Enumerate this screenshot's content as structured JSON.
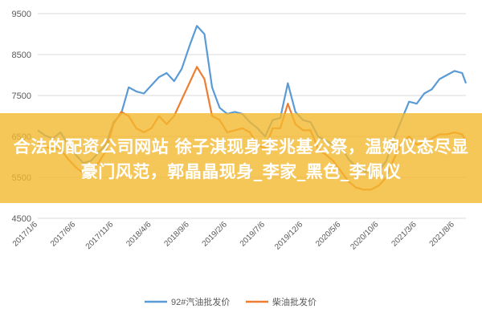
{
  "chart_data": {
    "type": "line",
    "ylim": [
      4500,
      9500
    ],
    "yticks": [
      4500,
      5500,
      6500,
      7500,
      8500,
      9500
    ],
    "x_tick_labels": [
      "2017/1/6",
      "2017/6/6",
      "2017/11/6",
      "2018/4/6",
      "2018/9/6",
      "2019/2/6",
      "2019/7/6",
      "2019/12/6",
      "2020/5/6",
      "2020/10/6",
      "2021/3/6",
      "2021/8/6"
    ],
    "x_tick_positions": [
      0,
      5,
      10,
      15,
      20,
      25,
      30,
      35,
      40,
      45,
      50,
      55
    ],
    "x_domain": [
      0,
      56.5
    ],
    "grid": true,
    "legend": "bottom",
    "series": [
      {
        "name": "92#汽油批发价",
        "color": "#5b9bd5",
        "points": [
          [
            0,
            6650
          ],
          [
            1,
            6520
          ],
          [
            2,
            6450
          ],
          [
            3,
            6600
          ],
          [
            4,
            6300
          ],
          [
            5,
            6050
          ],
          [
            6,
            5850
          ],
          [
            7,
            5900
          ],
          [
            8,
            6100
          ],
          [
            9,
            6300
          ],
          [
            10,
            6850
          ],
          [
            11,
            7050
          ],
          [
            12,
            7700
          ],
          [
            13,
            7600
          ],
          [
            14,
            7550
          ],
          [
            15,
            7750
          ],
          [
            16,
            7950
          ],
          [
            17,
            8050
          ],
          [
            18,
            7850
          ],
          [
            19,
            8150
          ],
          [
            20,
            8700
          ],
          [
            21,
            9200
          ],
          [
            22,
            9000
          ],
          [
            23,
            7700
          ],
          [
            24,
            7200
          ],
          [
            25,
            7050
          ],
          [
            26,
            7100
          ],
          [
            27,
            7050
          ],
          [
            28,
            6850
          ],
          [
            29,
            6700
          ],
          [
            30,
            6500
          ],
          [
            31,
            6900
          ],
          [
            32,
            6950
          ],
          [
            33,
            7800
          ],
          [
            34,
            7100
          ],
          [
            35,
            6900
          ],
          [
            36,
            6850
          ],
          [
            37,
            6500
          ],
          [
            38,
            6400
          ],
          [
            39,
            6300
          ],
          [
            40,
            6250
          ],
          [
            41,
            5950
          ],
          [
            42,
            5750
          ],
          [
            43,
            5650
          ],
          [
            44,
            5600
          ],
          [
            45,
            5650
          ],
          [
            46,
            5900
          ],
          [
            47,
            6450
          ],
          [
            48,
            6900
          ],
          [
            49,
            7350
          ],
          [
            50,
            7300
          ],
          [
            51,
            7550
          ],
          [
            52,
            7650
          ],
          [
            53,
            7900
          ],
          [
            54,
            8000
          ],
          [
            55,
            8100
          ],
          [
            56,
            8050
          ],
          [
            56.5,
            7800
          ]
        ]
      },
      {
        "name": "柴油批发价",
        "color": "#ed7d31",
        "points": [
          [
            0,
            6350
          ],
          [
            1,
            6250
          ],
          [
            2,
            6200
          ],
          [
            3,
            6200
          ],
          [
            4,
            5950
          ],
          [
            5,
            5750
          ],
          [
            6,
            5600
          ],
          [
            7,
            5650
          ],
          [
            8,
            5850
          ],
          [
            9,
            6150
          ],
          [
            10,
            6800
          ],
          [
            11,
            7100
          ],
          [
            12,
            7000
          ],
          [
            13,
            6700
          ],
          [
            14,
            6600
          ],
          [
            15,
            6700
          ],
          [
            16,
            7000
          ],
          [
            17,
            6800
          ],
          [
            18,
            7000
          ],
          [
            19,
            7400
          ],
          [
            20,
            7800
          ],
          [
            21,
            8200
          ],
          [
            22,
            7900
          ],
          [
            23,
            7000
          ],
          [
            24,
            6900
          ],
          [
            25,
            6600
          ],
          [
            26,
            6650
          ],
          [
            27,
            6700
          ],
          [
            28,
            6600
          ],
          [
            29,
            6300
          ],
          [
            30,
            6200
          ],
          [
            31,
            6700
          ],
          [
            32,
            6700
          ],
          [
            33,
            7300
          ],
          [
            34,
            6800
          ],
          [
            35,
            6650
          ],
          [
            36,
            6650
          ],
          [
            37,
            6200
          ],
          [
            38,
            6050
          ],
          [
            39,
            5900
          ],
          [
            40,
            5650
          ],
          [
            41,
            5400
          ],
          [
            42,
            5250
          ],
          [
            43,
            5200
          ],
          [
            44,
            5200
          ],
          [
            45,
            5300
          ],
          [
            46,
            5500
          ],
          [
            47,
            5950
          ],
          [
            48,
            6350
          ],
          [
            49,
            6500
          ],
          [
            50,
            6300
          ],
          [
            51,
            6350
          ],
          [
            52,
            6450
          ],
          [
            53,
            6550
          ],
          [
            54,
            6550
          ],
          [
            55,
            6600
          ],
          [
            56,
            6550
          ],
          [
            56.5,
            6400
          ]
        ]
      }
    ]
  },
  "overlay": {
    "text": "合法的配资公司网站 徐子淇现身李兆基公祭，温婉仪态尽显豪门风范，郭晶晶现身_李家_黑色_李佩仪"
  }
}
